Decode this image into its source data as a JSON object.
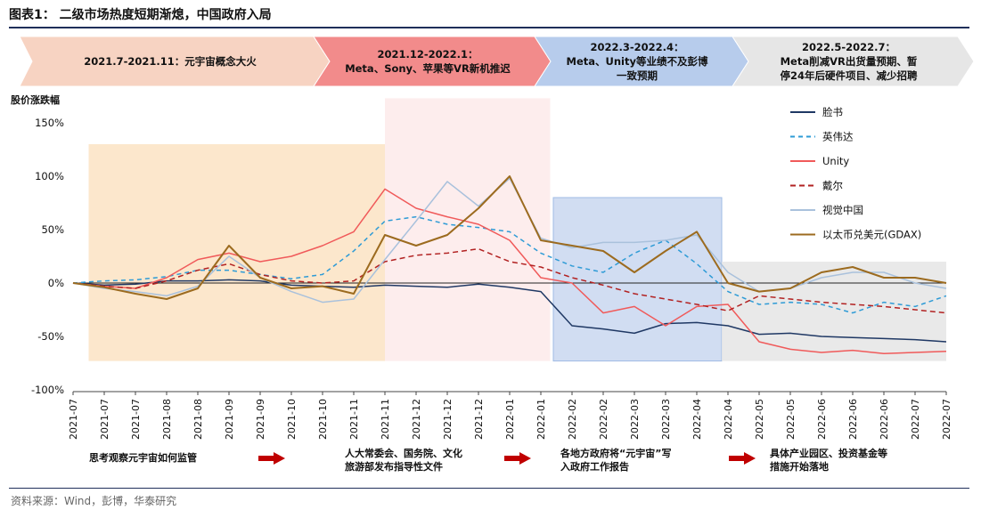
{
  "figure": {
    "title": "图表1：  二级市场热度短期渐熄，中国政府入局",
    "source": "资料来源：Wind，彭博，华泰研究"
  },
  "phases": [
    {
      "title": "2021.7-2021.11：元宇宙概念大火",
      "subtitle": "",
      "color": "#f7d3c2"
    },
    {
      "title": "2021.12-2022.1：",
      "subtitle": "Meta、Sony、苹果等VR新机推迟",
      "color": "#f28b8b"
    },
    {
      "title": "2022.3-2022.4：",
      "subtitle": "Meta、Unity等业绩不及彭博一致预期",
      "subtitle_lines": [
        "Meta、Unity等业绩不及彭博",
        "一致预期"
      ],
      "color": "#b7ccec"
    },
    {
      "title": "2022.5-2022.7：",
      "subtitle": "Meta削减VR出货量预期、暂停24年后硬件项目、减少招聘",
      "subtitle_lines": [
        "Meta削减VR出货量预期、暂",
        "停24年后硬件项目、减少招聘"
      ],
      "color": "#e6e6e6"
    }
  ],
  "notes": [
    {
      "lines": [
        "思考观察元宇宙如何监管"
      ]
    },
    {
      "lines": [
        "人大常委会、国务院、文化",
        "旅游部发布指导性文件"
      ]
    },
    {
      "lines": [
        "各地方政府将“元宇宙”写",
        "入政府工作报告"
      ]
    },
    {
      "lines": [
        "具体产业园区、投资基金等",
        "措施开始落地"
      ]
    }
  ],
  "chart_data": {
    "type": "line",
    "ylabel": "股价涨跌幅",
    "ylim": [
      -100,
      150
    ],
    "yticks": [
      "-100%",
      "-50%",
      "0%",
      "50%",
      "100%",
      "150%"
    ],
    "ytick_values": [
      -100,
      -50,
      0,
      50,
      100,
      150
    ],
    "xtick_labels": [
      "2021-07",
      "2021-07",
      "2021-07",
      "2021-08",
      "2021-08",
      "2021-09",
      "2021-09",
      "2021-10",
      "2021-10",
      "2021-11",
      "2021-11",
      "2021-12",
      "2021-12",
      "2021-12",
      "2022-01",
      "2022-01",
      "2022-02",
      "2022-02",
      "2022-03",
      "2022-03",
      "2022-04",
      "2022-04",
      "2022-05",
      "2022-05",
      "2022-06",
      "2022-06",
      "2022-06",
      "2022-07",
      "2022-07"
    ],
    "legend_position": "top-right",
    "grid": false,
    "shaded_periods": [
      {
        "from_index": 0.5,
        "to_index": 10.0,
        "ymin": -73,
        "ymax": 130,
        "color": "#fbe3c3"
      },
      {
        "from_index": 10.0,
        "to_index": 15.3,
        "ymin": -73,
        "ymax": 173,
        "color": "#fdeaea"
      },
      {
        "from_index": 15.4,
        "to_index": 20.8,
        "ymin": -73,
        "ymax": 80,
        "color": "#c9d8f0"
      },
      {
        "from_index": 20.8,
        "to_index": 28.0,
        "ymin": -73,
        "ymax": 20,
        "color": "#e5e5e5"
      }
    ],
    "series": [
      {
        "name": "脸书",
        "color": "#1f3864",
        "dash": "",
        "x": [
          0,
          1,
          2,
          3,
          4,
          5,
          6,
          7,
          8,
          9,
          10,
          11,
          12,
          13,
          14,
          15,
          16,
          17,
          18,
          19,
          20,
          21,
          22,
          23,
          24,
          25,
          26,
          27,
          28
        ],
        "values": [
          0,
          -2,
          -1,
          2,
          2,
          3,
          2,
          -2,
          -3,
          -4,
          -2,
          -3,
          -4,
          -1,
          -4,
          -8,
          -40,
          -43,
          -47,
          -38,
          -37,
          -40,
          -48,
          -47,
          -50,
          -51,
          -52,
          -53,
          -55
        ]
      },
      {
        "name": "英伟达",
        "color": "#2e9bd6",
        "dash": "5,4",
        "x": [
          0,
          1,
          2,
          3,
          4,
          5,
          6,
          7,
          8,
          9,
          10,
          11,
          12,
          13,
          14,
          15,
          16,
          17,
          18,
          19,
          20,
          21,
          22,
          23,
          24,
          25,
          26,
          27,
          28
        ],
        "values": [
          0,
          2,
          3,
          6,
          12,
          12,
          8,
          4,
          8,
          30,
          58,
          62,
          55,
          52,
          48,
          28,
          16,
          10,
          28,
          40,
          18,
          -8,
          -20,
          -18,
          -20,
          -28,
          -18,
          -22,
          -12
        ]
      },
      {
        "name": "Unity",
        "color": "#f05a5a",
        "dash": "",
        "x": [
          0,
          1,
          2,
          3,
          4,
          5,
          6,
          7,
          8,
          9,
          10,
          11,
          12,
          13,
          14,
          15,
          16,
          17,
          18,
          19,
          20,
          21,
          22,
          23,
          24,
          25,
          26,
          27,
          28
        ],
        "values": [
          0,
          -3,
          -5,
          5,
          22,
          28,
          20,
          25,
          35,
          48,
          88,
          70,
          62,
          55,
          40,
          5,
          0,
          -28,
          -22,
          -40,
          -22,
          -20,
          -55,
          -62,
          -65,
          -63,
          -66,
          -65,
          -64
        ]
      },
      {
        "name": "戴尔",
        "color": "#b22222",
        "dash": "6,4",
        "x": [
          0,
          1,
          2,
          3,
          4,
          5,
          6,
          7,
          8,
          9,
          10,
          11,
          12,
          13,
          14,
          15,
          16,
          17,
          18,
          19,
          20,
          21,
          22,
          23,
          24,
          25,
          26,
          27,
          28
        ],
        "values": [
          0,
          -3,
          -5,
          2,
          12,
          18,
          8,
          2,
          0,
          2,
          20,
          26,
          28,
          32,
          20,
          15,
          5,
          -2,
          -10,
          -15,
          -20,
          -26,
          -12,
          -15,
          -18,
          -20,
          -22,
          -25,
          -28
        ]
      },
      {
        "name": "视觉中国",
        "color": "#a9c1dc",
        "dash": "",
        "x": [
          0,
          1,
          2,
          3,
          4,
          5,
          6,
          7,
          8,
          9,
          10,
          11,
          12,
          13,
          14,
          15,
          16,
          17,
          18,
          19,
          20,
          21,
          22,
          23,
          24,
          25,
          26,
          27,
          28
        ],
        "values": [
          0,
          -5,
          -8,
          -12,
          -3,
          25,
          5,
          -8,
          -18,
          -15,
          22,
          58,
          95,
          72,
          98,
          42,
          33,
          38,
          38,
          40,
          45,
          10,
          -8,
          -5,
          5,
          10,
          10,
          0,
          -5
        ]
      },
      {
        "name": "以太币兑美元(GDAX)",
        "color": "#9c6b1f",
        "dash": "",
        "x": [
          0,
          1,
          2,
          3,
          4,
          5,
          6,
          7,
          8,
          9,
          10,
          11,
          12,
          13,
          14,
          15,
          16,
          17,
          18,
          19,
          20,
          21,
          22,
          23,
          24,
          25,
          26,
          27,
          28
        ],
        "values": [
          0,
          -4,
          -10,
          -15,
          -5,
          35,
          5,
          -5,
          -3,
          -10,
          45,
          35,
          45,
          70,
          100,
          40,
          35,
          30,
          10,
          30,
          48,
          0,
          -8,
          -5,
          10,
          15,
          5,
          5,
          0
        ]
      }
    ]
  }
}
